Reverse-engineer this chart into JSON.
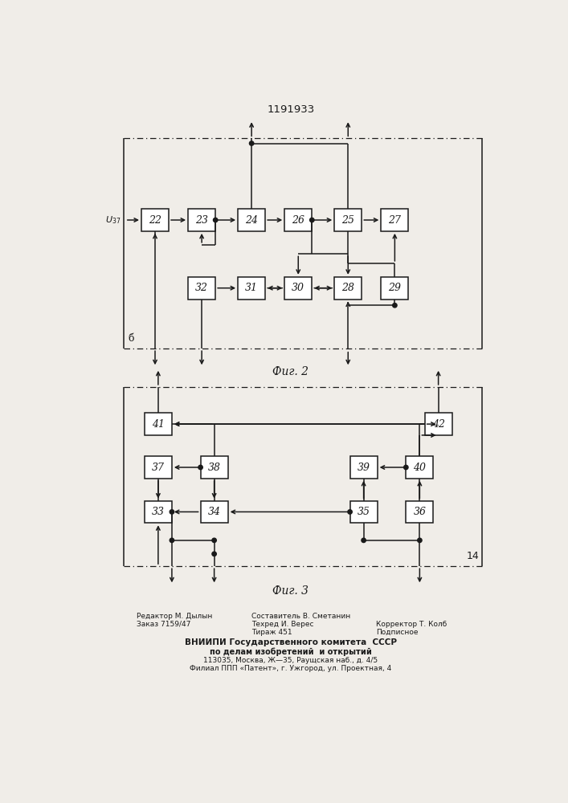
{
  "title": "1191933",
  "fig2_label": "Фиг. 2",
  "fig3_label": "Фиг. 3",
  "bg_color": "#f0ede8",
  "lc": "#1a1a1a",
  "footer": {
    "left": [
      "Редактор М. Дылын",
      "Заказ 7159/47"
    ],
    "mid": [
      "Составитель В. Сметанин",
      "Техред И. Верес",
      "Тираж 451"
    ],
    "right": [
      "Корректор Т. Колб",
      "Подписное"
    ],
    "center": [
      "ВНИИПИ Государственного комитета  СССР",
      "по делам изобретений  и открытий",
      "113035, Москва, Ж—35, Раущская наб., д. 4/5",
      "Филиал ППП «Патент», г. Ужгород, ул. Проектная, 4"
    ]
  }
}
